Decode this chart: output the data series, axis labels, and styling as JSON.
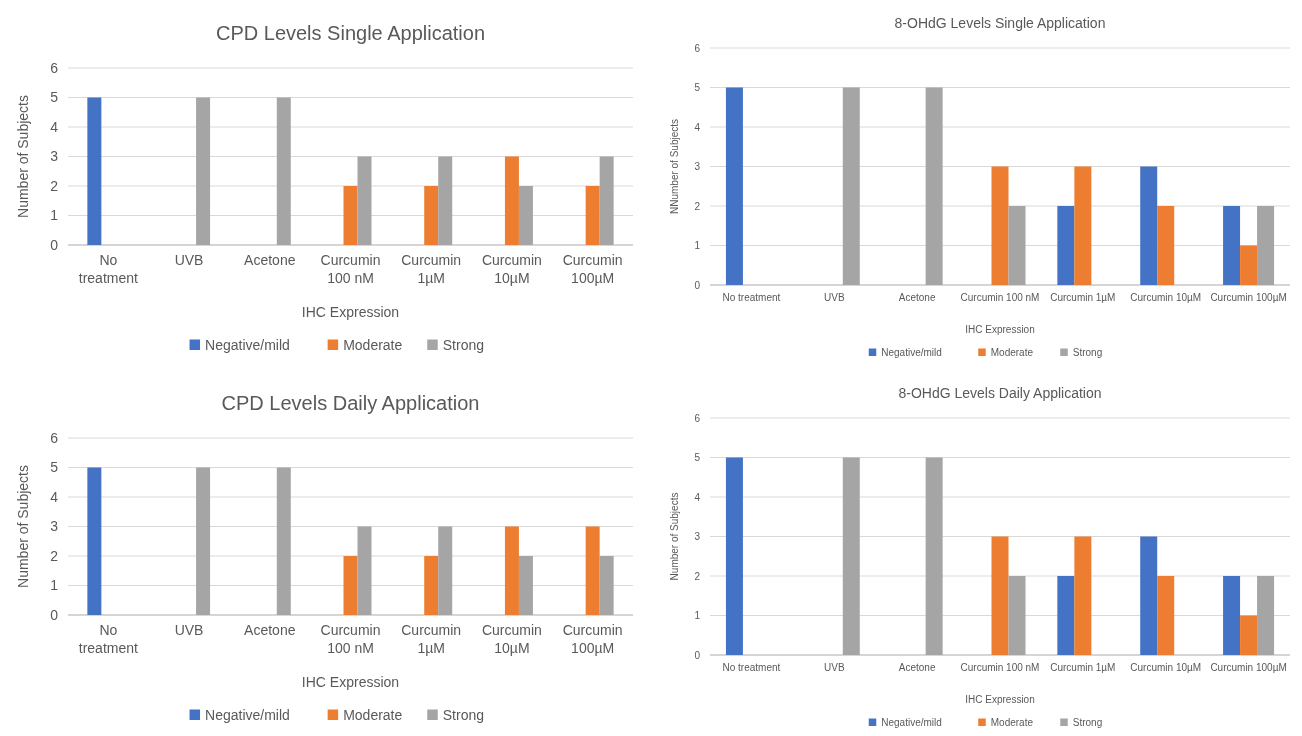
{
  "chart_data": [
    {
      "type": "bar",
      "title": "CPD Levels Single Application",
      "xlabel": "IHC Expression",
      "ylabel": "Number of Subjects",
      "categories": [
        "No treatment",
        "UVB",
        "Acetone",
        "Curcumin 100 nM",
        "Curcumin 1µM",
        "Curcumin 10µM",
        "Curcumin 100µM"
      ],
      "ylim": [
        0,
        6
      ],
      "yticks": [
        0,
        1,
        2,
        3,
        4,
        5,
        6
      ],
      "grid": "y",
      "legend": "bottom",
      "series": [
        {
          "name": "Negative/mild",
          "color": "#4472c4",
          "values": [
            5,
            0,
            0,
            0,
            0,
            0,
            0
          ]
        },
        {
          "name": "Moderate",
          "color": "#ed7d31",
          "values": [
            0,
            0,
            0,
            2,
            2,
            3,
            2
          ]
        },
        {
          "name": "Strong",
          "color": "#a5a5a5",
          "values": [
            0,
            5,
            5,
            3,
            3,
            2,
            3
          ]
        }
      ]
    },
    {
      "type": "bar",
      "title": "8-OHdG Levels Single Application",
      "xlabel": "IHC Expression",
      "ylabel": "NNumber of Subjects",
      "categories": [
        "No treatment",
        "UVB",
        "Acetone",
        "Curcumin 100 nM",
        "Curcumin 1µM",
        "Curcumin 10µM",
        "Curcumin 100µM"
      ],
      "ylim": [
        0,
        6
      ],
      "yticks": [
        0,
        1,
        2,
        3,
        4,
        5,
        6
      ],
      "grid": "y",
      "legend": "bottom",
      "series": [
        {
          "name": "Negative/mild",
          "color": "#4472c4",
          "values": [
            5,
            0,
            0,
            0,
            2,
            3,
            2
          ]
        },
        {
          "name": "Moderate",
          "color": "#ed7d31",
          "values": [
            0,
            0,
            0,
            3,
            3,
            2,
            1
          ]
        },
        {
          "name": "Strong",
          "color": "#a5a5a5",
          "values": [
            0,
            5,
            5,
            2,
            0,
            0,
            2
          ]
        }
      ]
    },
    {
      "type": "bar",
      "title": "CPD Levels Daily Application",
      "xlabel": "IHC Expression",
      "ylabel": "Number of Subjects",
      "categories": [
        "No treatment",
        "UVB",
        "Acetone",
        "Curcumin 100 nM",
        "Curcumin 1µM",
        "Curcumin 10µM",
        "Curcumin 100µM"
      ],
      "ylim": [
        0,
        6
      ],
      "yticks": [
        0,
        1,
        2,
        3,
        4,
        5,
        6
      ],
      "grid": "y",
      "legend": "bottom",
      "series": [
        {
          "name": "Negative/mild",
          "color": "#4472c4",
          "values": [
            5,
            0,
            0,
            0,
            0,
            0,
            0
          ]
        },
        {
          "name": "Moderate",
          "color": "#ed7d31",
          "values": [
            0,
            0,
            0,
            2,
            2,
            3,
            3
          ]
        },
        {
          "name": "Strong",
          "color": "#a5a5a5",
          "values": [
            0,
            5,
            5,
            3,
            3,
            2,
            2
          ]
        }
      ]
    },
    {
      "type": "bar",
      "title": "8-OHdG Levels Daily Application",
      "xlabel": "IHC Expression",
      "ylabel": "Number of Subjects",
      "categories": [
        "No treatment",
        "UVB",
        "Acetone",
        "Curcumin 100 nM",
        "Curcumin 1µM",
        "Curcumin 10µM",
        "Curcumin 100µM"
      ],
      "ylim": [
        0,
        6
      ],
      "yticks": [
        0,
        1,
        2,
        3,
        4,
        5,
        6
      ],
      "grid": "y",
      "legend": "bottom",
      "series": [
        {
          "name": "Negative/mild",
          "color": "#4472c4",
          "values": [
            5,
            0,
            0,
            0,
            2,
            3,
            2
          ]
        },
        {
          "name": "Moderate",
          "color": "#ed7d31",
          "values": [
            0,
            0,
            0,
            3,
            3,
            2,
            1
          ]
        },
        {
          "name": "Strong",
          "color": "#a5a5a5",
          "values": [
            0,
            5,
            5,
            2,
            0,
            0,
            2
          ]
        }
      ]
    }
  ]
}
